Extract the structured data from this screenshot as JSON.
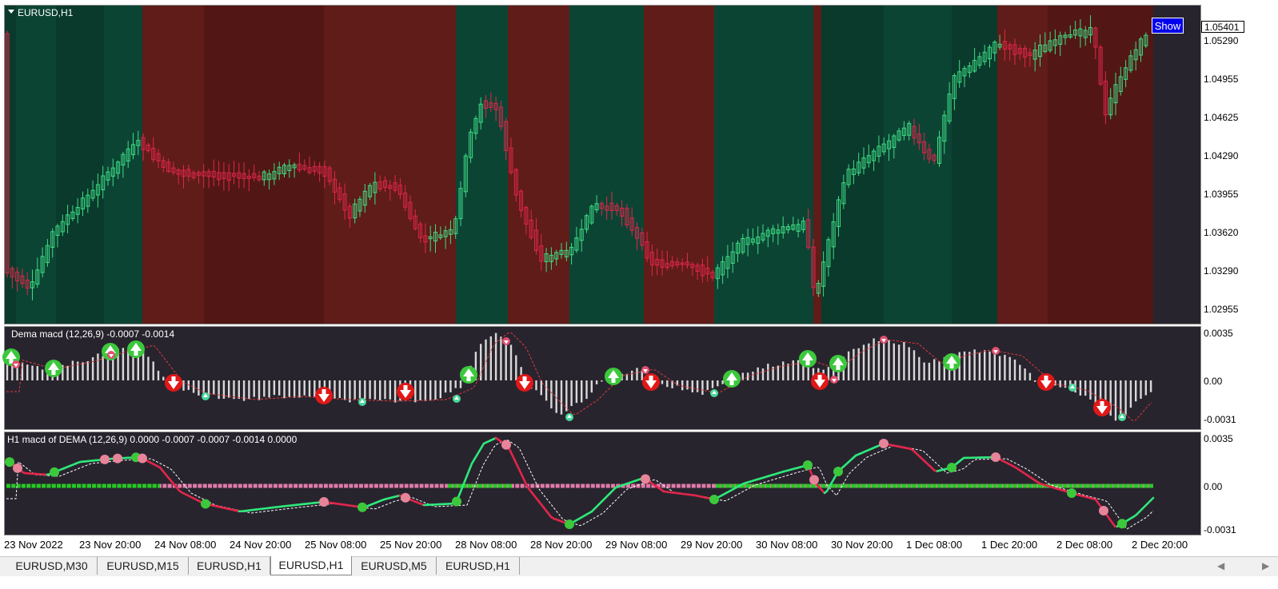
{
  "symbol_title": "EURUSD,H1",
  "show_button": "Show",
  "current_price": "1.05401",
  "price_axis": [
    "1.05290",
    "1.04955",
    "1.04625",
    "1.04290",
    "1.03955",
    "1.03620",
    "1.03290",
    "1.02955"
  ],
  "indicator1": {
    "label": "Dema macd (12,26,9) -0.0007 -0.0014",
    "axis": [
      "0.0035",
      "0.00",
      "-0.0031"
    ]
  },
  "indicator2": {
    "label": "H1 macd of DEMA (12,26,9) 0.0000 -0.0007 -0.0007 -0.0014 0.0000",
    "axis": [
      "0.0035",
      "0.00",
      "-0.0031"
    ]
  },
  "time_axis": [
    "23 Nov 2022",
    "23 Nov 20:00",
    "24 Nov 08:00",
    "24 Nov 20:00",
    "25 Nov 08:00",
    "25 Nov 20:00",
    "28 Nov 08:00",
    "28 Nov 20:00",
    "29 Nov 08:00",
    "29 Nov 20:00",
    "30 Nov 08:00",
    "30 Nov 20:00",
    "1 Dec 08:00",
    "1 Dec 20:00",
    "2 Dec 08:00",
    "2 Dec 20:00"
  ],
  "tabs": [
    {
      "label": "EURUSD,M30",
      "active": false
    },
    {
      "label": "EURUSD,M15",
      "active": false
    },
    {
      "label": "EURUSD,H1",
      "active": false
    },
    {
      "label": "EURUSD,H1",
      "active": true
    },
    {
      "label": "EURUSD,M5",
      "active": false
    },
    {
      "label": "EURUSD,H1",
      "active": false
    }
  ],
  "icons": {
    "left": "scroll-left-icon",
    "right": "scroll-right-icon",
    "dropdown": "dropdown-triangle-icon"
  },
  "colors": {
    "pane_bg": "#28242e",
    "zone_green": "#0c4434",
    "zone_green_dark": "#0a3a2c",
    "zone_red": "#5f1c18",
    "zone_red_dark": "#521714",
    "candle_up": "#3ddc84",
    "candle_down": "#e0264a",
    "hist": "#d8d8d8",
    "signal_dash": "#e03a3a",
    "macd_up": "#2ee87a",
    "macd_down": "#e0264a",
    "zero_green": "#22cc22",
    "zero_pink": "#e07aa8",
    "dot_green": "#3cc83c",
    "dot_pink": "#e8849a",
    "arrow_up": "#3cc83c",
    "arrow_down": "#e01818"
  }
}
